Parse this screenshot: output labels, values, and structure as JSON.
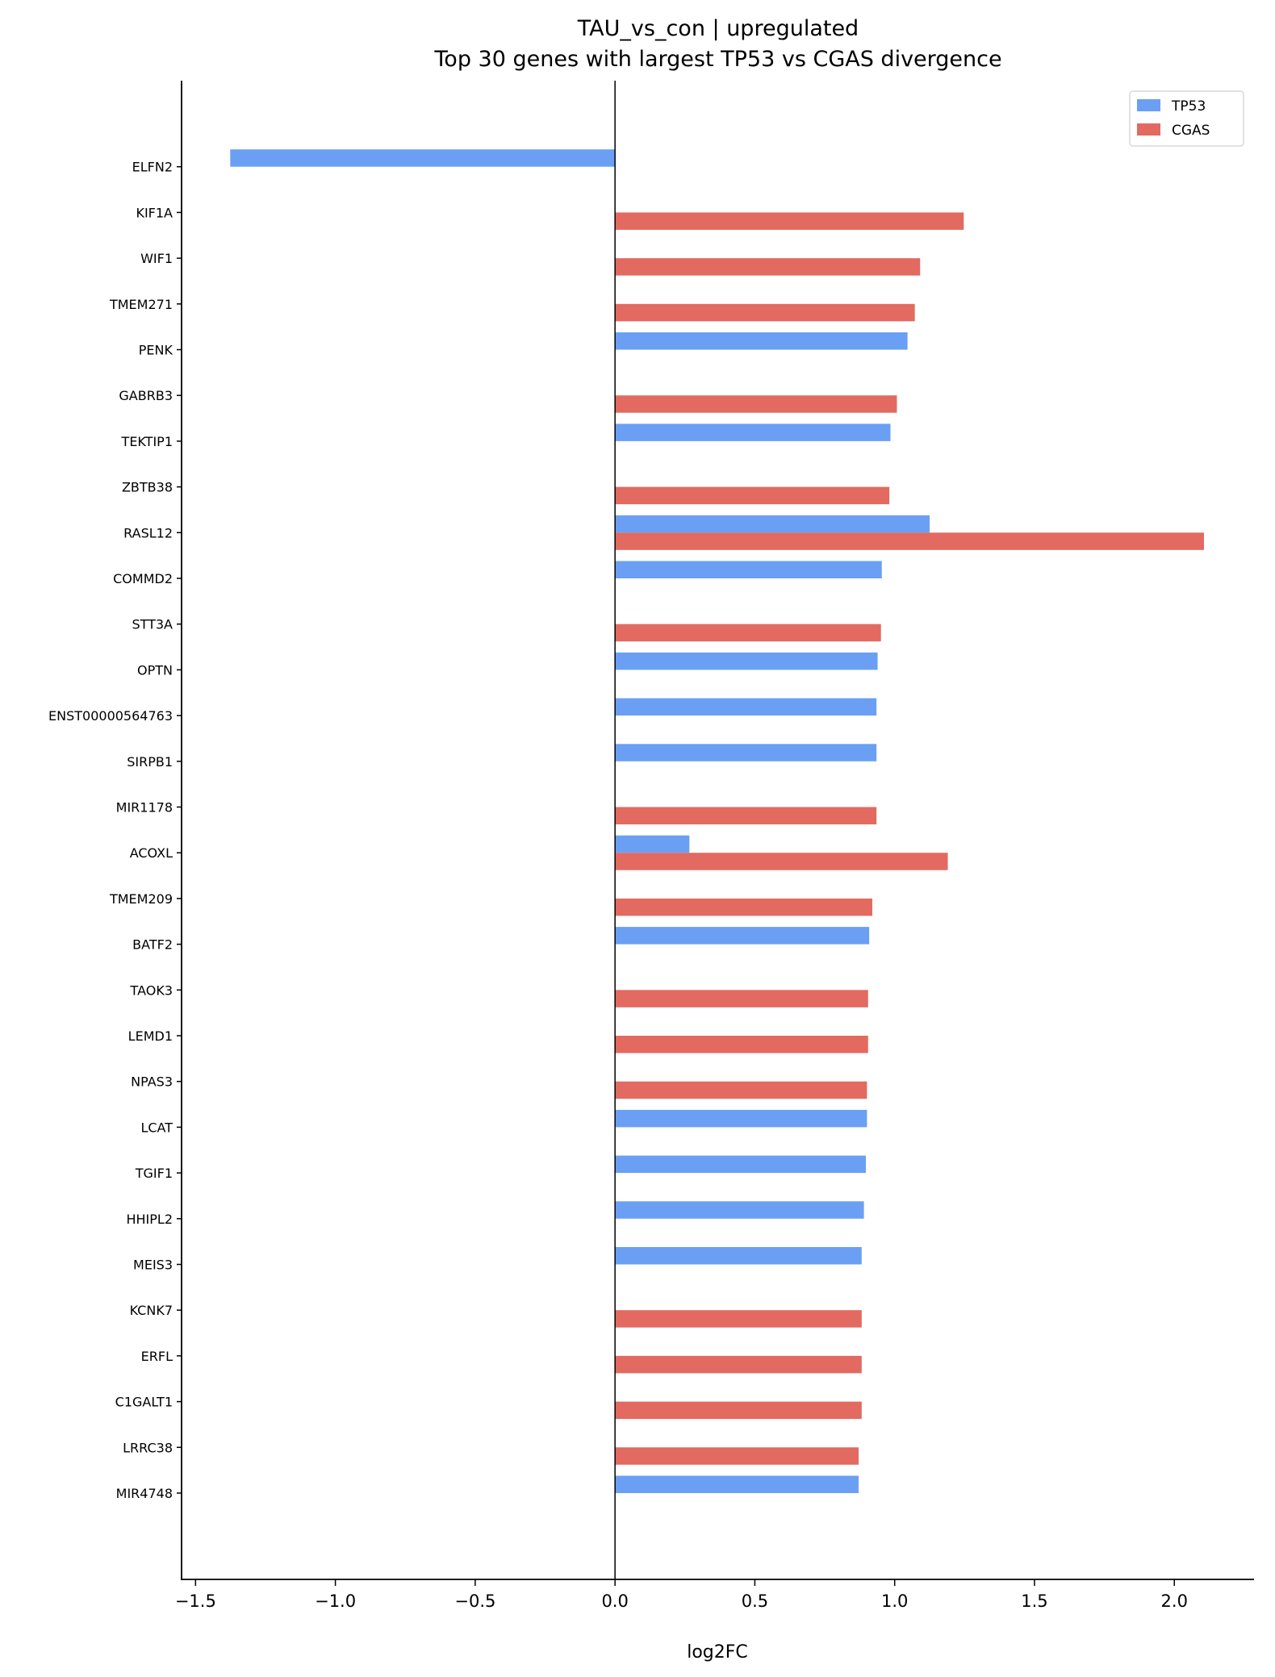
{
  "chart_data": {
    "type": "bar",
    "orientation": "horizontal",
    "title": "TAU_vs_con | upregulated",
    "subtitle": "Top 30 genes with largest TP53 vs CGAS divergence",
    "xlabel": "log2FC",
    "ylabel": "",
    "xlim": [
      -1.55,
      2.285
    ],
    "xticks": [
      -1.5,
      -1.0,
      -0.5,
      0.0,
      0.5,
      1.0,
      1.5,
      2.0
    ],
    "xtick_labels": [
      "−1.5",
      "−1.0",
      "−0.5",
      "0.0",
      "0.5",
      "1.0",
      "1.5",
      "2.0"
    ],
    "grid": false,
    "legend_position": "top-right",
    "categories": [
      "ELFN2",
      "KIF1A",
      "WIF1",
      "TMEM271",
      "PENK",
      "GABRB3",
      "TEKTIP1",
      "ZBTB38",
      "RASL12",
      "COMMD2",
      "STT3A",
      "OPTN",
      "ENST00000564763",
      "SIRPB1",
      "MIR1178",
      "ACOXL",
      "TMEM209",
      "BATF2",
      "TAOK3",
      "LEMD1",
      "NPAS3",
      "LCAT",
      "TGIF1",
      "HHIPL2",
      "MEIS3",
      "KCNK7",
      "ERFL",
      "C1GALT1",
      "LRRC38",
      "MIR4748"
    ],
    "series": [
      {
        "name": "TP53",
        "color": "#6a9ff4",
        "values": [
          -1.376,
          null,
          null,
          null,
          1.046,
          null,
          0.985,
          null,
          1.125,
          0.954,
          null,
          0.939,
          0.935,
          0.935,
          null,
          0.266,
          null,
          0.909,
          null,
          null,
          null,
          0.901,
          0.897,
          0.89,
          0.882,
          null,
          null,
          null,
          null,
          0.871
        ]
      },
      {
        "name": "CGAS",
        "color": "#e26a60",
        "values": [
          null,
          1.247,
          1.091,
          1.072,
          null,
          1.008,
          null,
          0.981,
          2.106,
          null,
          0.951,
          null,
          null,
          null,
          0.935,
          1.19,
          0.92,
          null,
          0.905,
          0.905,
          0.901,
          null,
          null,
          null,
          null,
          0.882,
          0.882,
          0.882,
          0.871,
          null
        ]
      }
    ]
  }
}
